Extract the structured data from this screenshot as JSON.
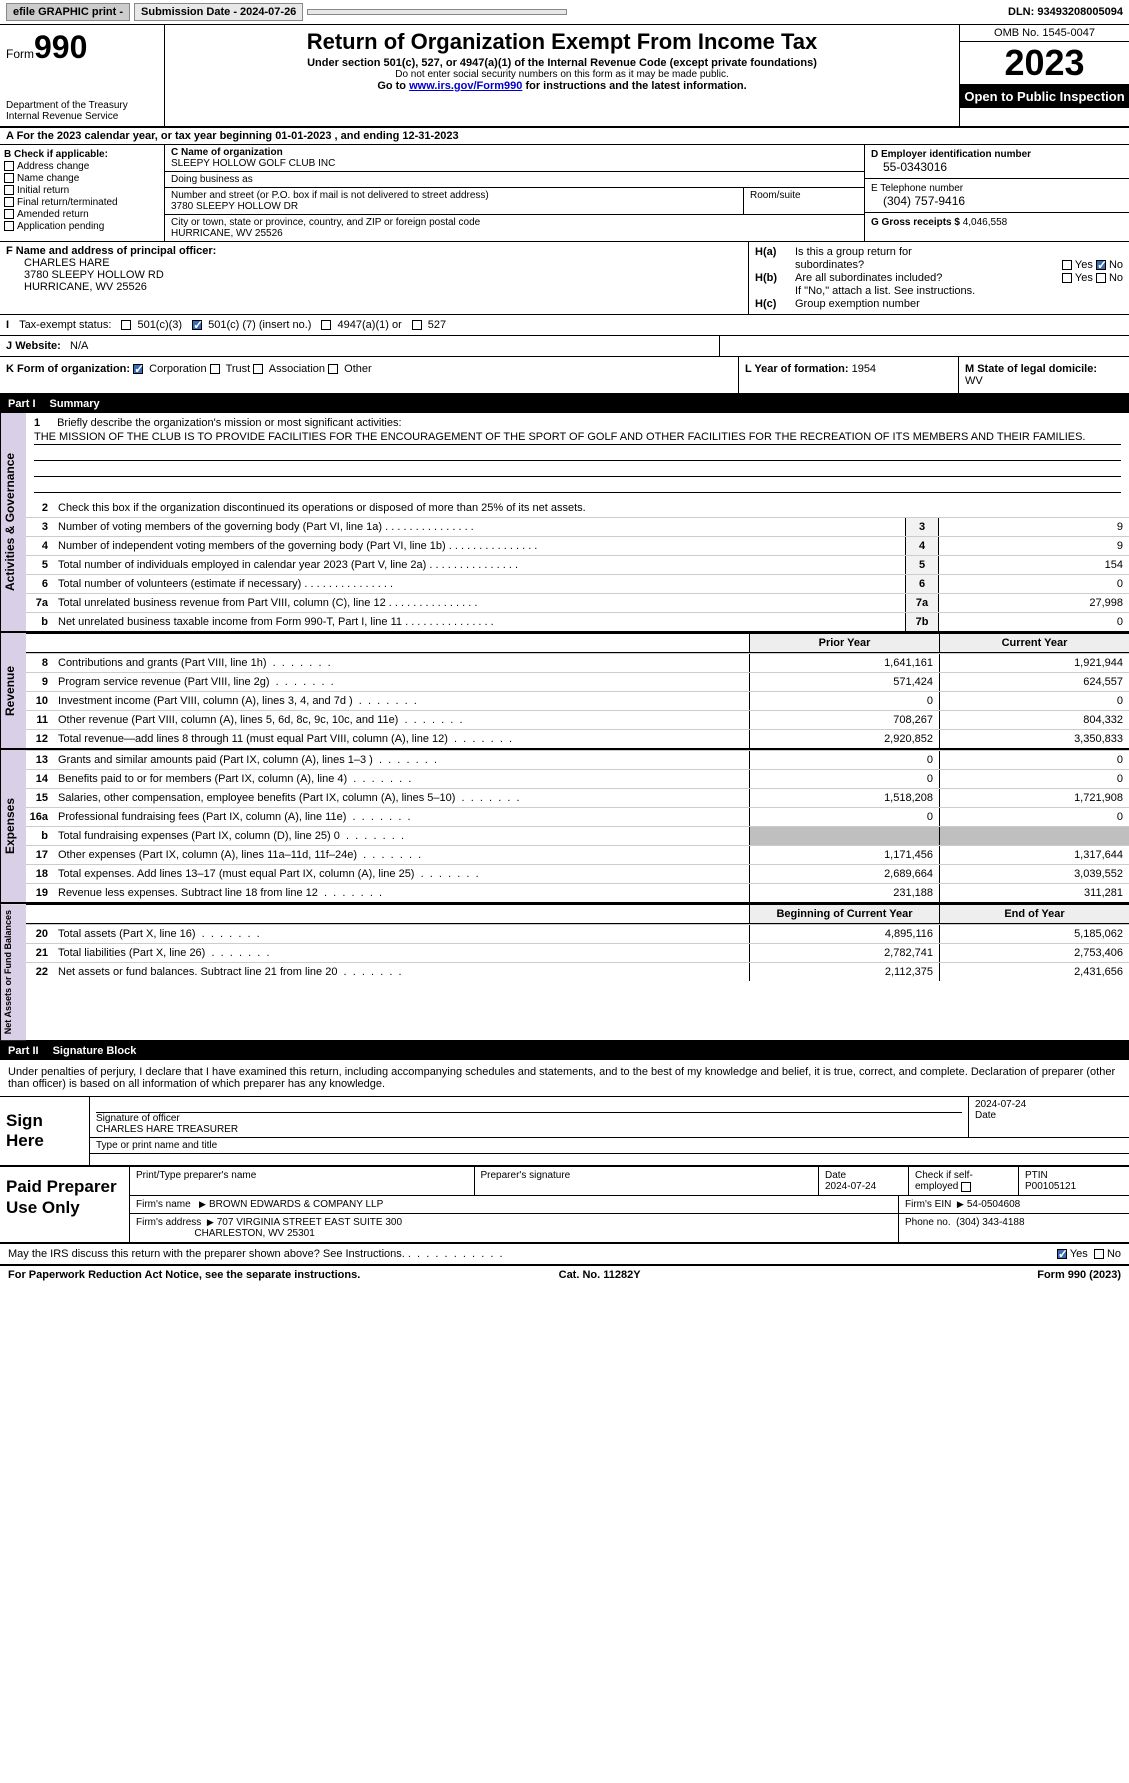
{
  "topbar": {
    "efile": "efile GRAPHIC print -",
    "submission": "Submission Date - 2024-07-26",
    "dln": "DLN: 93493208005094"
  },
  "header": {
    "form_label": "Form",
    "form_num": "990",
    "dept": "Department of the Treasury\nInternal Revenue Service",
    "title": "Return of Organization Exempt From Income Tax",
    "sub1": "Under section 501(c), 527, or 4947(a)(1) of the Internal Revenue Code (except private foundations)",
    "sub2": "Do not enter social security numbers on this form as it may be made public.",
    "sub3_pre": "Go to ",
    "sub3_link": "www.irs.gov/Form990",
    "sub3_post": " for instructions and the latest information.",
    "omb": "OMB No. 1545-0047",
    "year": "2023",
    "inspect": "Open to Public Inspection"
  },
  "rowA": "A For the 2023 calendar year, or tax year beginning 01-01-2023   , and ending 12-31-2023",
  "colB": {
    "title": "B Check if applicable:",
    "items": [
      "Address change",
      "Name change",
      "Initial return",
      "Final return/terminated",
      "Amended return",
      "Application pending"
    ]
  },
  "colC": {
    "name_label": "C Name of organization",
    "name": "SLEEPY HOLLOW GOLF CLUB INC",
    "dba_label": "Doing business as",
    "dba": "",
    "street_label": "Number and street (or P.O. box if mail is not delivered to street address)",
    "street": "3780 SLEEPY HOLLOW DR",
    "room_label": "Room/suite",
    "room": "",
    "city_label": "City or town, state or province, country, and ZIP or foreign postal code",
    "city": "HURRICANE, WV  25526"
  },
  "colD": {
    "ein_label": "D Employer identification number",
    "ein": "55-0343016",
    "tel_label": "E Telephone number",
    "tel": "(304) 757-9416",
    "gross_label": "G Gross receipts $",
    "gross": "4,046,558"
  },
  "colF": {
    "label": "F Name and address of principal officer:",
    "name": "CHARLES HARE",
    "street": "3780 SLEEPY HOLLOW RD",
    "city": "HURRICANE, WV  25526"
  },
  "colH": {
    "a_label": "H(a)",
    "a_txt1": "Is this a group return for",
    "a_txt2": "subordinates?",
    "b_label": "H(b)",
    "b_txt1": "Are all subordinates included?",
    "b_note": "If \"No,\" attach a list. See instructions.",
    "c_label": "H(c)",
    "c_txt": "Group exemption number",
    "yes": "Yes",
    "no": "No"
  },
  "rowI": {
    "label": "I",
    "txt": "Tax-exempt status:",
    "opt1": "501(c)(3)",
    "opt2_pre": "501(c) (",
    "opt2_val": "7",
    "opt2_post": ") (insert no.)",
    "opt3": "4947(a)(1) or",
    "opt4": "527"
  },
  "rowJ": {
    "label": "J",
    "txt": "Website:",
    "val": "N/A"
  },
  "rowK": {
    "label": "K Form of organization:",
    "opts": [
      "Corporation",
      "Trust",
      "Association",
      "Other"
    ],
    "L_label": "L Year of formation:",
    "L_val": "1954",
    "M_label": "M State of legal domicile:",
    "M_val": "WV"
  },
  "part1": {
    "num": "Part I",
    "title": "Summary"
  },
  "sidelabels": {
    "ag": "Activities & Governance",
    "rev": "Revenue",
    "exp": "Expenses",
    "na": "Net Assets or Fund Balances"
  },
  "mission": {
    "label": "1",
    "intro": "Briefly describe the organization's mission or most significant activities:",
    "text": "THE MISSION OF THE CLUB IS TO PROVIDE FACILITIES FOR THE ENCOURAGEMENT OF THE SPORT OF GOLF AND OTHER FACILITIES FOR THE RECREATION OF ITS MEMBERS AND THEIR FAMILIES."
  },
  "ag_lines": [
    {
      "n": "2",
      "t": "Check this box    if the organization discontinued its operations or disposed of more than 25% of its net assets."
    },
    {
      "n": "3",
      "t": "Number of voting members of the governing body (Part VI, line 1a)",
      "box": "3",
      "v": "9"
    },
    {
      "n": "4",
      "t": "Number of independent voting members of the governing body (Part VI, line 1b)",
      "box": "4",
      "v": "9"
    },
    {
      "n": "5",
      "t": "Total number of individuals employed in calendar year 2023 (Part V, line 2a)",
      "box": "5",
      "v": "154"
    },
    {
      "n": "6",
      "t": "Total number of volunteers (estimate if necessary)",
      "box": "6",
      "v": "0"
    },
    {
      "n": "7a",
      "t": "Total unrelated business revenue from Part VIII, column (C), line 12",
      "box": "7a",
      "v": "27,998"
    },
    {
      "n": "b",
      "t": "Net unrelated business taxable income from Form 990-T, Part I, line 11",
      "box": "7b",
      "v": "0"
    }
  ],
  "col_hdr": {
    "prior": "Prior Year",
    "current": "Current Year"
  },
  "rev_lines": [
    {
      "n": "8",
      "t": "Contributions and grants (Part VIII, line 1h)",
      "p": "1,641,161",
      "c": "1,921,944"
    },
    {
      "n": "9",
      "t": "Program service revenue (Part VIII, line 2g)",
      "p": "571,424",
      "c": "624,557"
    },
    {
      "n": "10",
      "t": "Investment income (Part VIII, column (A), lines 3, 4, and 7d )",
      "p": "0",
      "c": "0"
    },
    {
      "n": "11",
      "t": "Other revenue (Part VIII, column (A), lines 5, 6d, 8c, 9c, 10c, and 11e)",
      "p": "708,267",
      "c": "804,332"
    },
    {
      "n": "12",
      "t": "Total revenue—add lines 8 through 11 (must equal Part VIII, column (A), line 12)",
      "p": "2,920,852",
      "c": "3,350,833"
    }
  ],
  "exp_lines": [
    {
      "n": "13",
      "t": "Grants and similar amounts paid (Part IX, column (A), lines 1–3 )",
      "p": "0",
      "c": "0"
    },
    {
      "n": "14",
      "t": "Benefits paid to or for members (Part IX, column (A), line 4)",
      "p": "0",
      "c": "0"
    },
    {
      "n": "15",
      "t": "Salaries, other compensation, employee benefits (Part IX, column (A), lines 5–10)",
      "p": "1,518,208",
      "c": "1,721,908"
    },
    {
      "n": "16a",
      "t": "Professional fundraising fees (Part IX, column (A), line 11e)",
      "p": "0",
      "c": "0"
    },
    {
      "n": "b",
      "t": "Total fundraising expenses (Part IX, column (D), line 25) 0",
      "shade": true
    },
    {
      "n": "17",
      "t": "Other expenses (Part IX, column (A), lines 11a–11d, 11f–24e)",
      "p": "1,171,456",
      "c": "1,317,644"
    },
    {
      "n": "18",
      "t": "Total expenses. Add lines 13–17 (must equal Part IX, column (A), line 25)",
      "p": "2,689,664",
      "c": "3,039,552"
    },
    {
      "n": "19",
      "t": "Revenue less expenses. Subtract line 18 from line 12",
      "p": "231,188",
      "c": "311,281"
    }
  ],
  "na_hdr": {
    "begin": "Beginning of Current Year",
    "end": "End of Year"
  },
  "na_lines": [
    {
      "n": "20",
      "t": "Total assets (Part X, line 16)",
      "p": "4,895,116",
      "c": "5,185,062"
    },
    {
      "n": "21",
      "t": "Total liabilities (Part X, line 26)",
      "p": "2,782,741",
      "c": "2,753,406"
    },
    {
      "n": "22",
      "t": "Net assets or fund balances. Subtract line 21 from line 20",
      "p": "2,112,375",
      "c": "2,431,656"
    }
  ],
  "part2": {
    "num": "Part II",
    "title": "Signature Block"
  },
  "sig_intro": "Under penalties of perjury, I declare that I have examined this return, including accompanying schedules and statements, and to the best of my knowledge and belief, it is true, correct, and complete. Declaration of preparer (other than officer) is based on all information of which preparer has any knowledge.",
  "sign": {
    "label": "Sign Here",
    "sig_label": "Signature of officer",
    "name": "CHARLES HARE  TREASURER",
    "type_label": "Type or print name and title",
    "date_label": "Date",
    "date": "2024-07-24"
  },
  "paid": {
    "label": "Paid Preparer Use Only",
    "name_label": "Print/Type preparer's name",
    "sig_label": "Preparer's signature",
    "date_label": "Date",
    "date": "2024-07-24",
    "check_label": "Check    if self-employed",
    "ptin_label": "PTIN",
    "ptin": "P00105121",
    "firm_name_label": "Firm's name",
    "firm_name": "BROWN EDWARDS & COMPANY LLP",
    "firm_ein_label": "Firm's EIN",
    "firm_ein": "54-0504608",
    "firm_addr_label": "Firm's address",
    "firm_addr1": "707 VIRGINIA STREET EAST SUITE 300",
    "firm_addr2": "CHARLESTON, WV  25301",
    "phone_label": "Phone no.",
    "phone": "(304) 343-4188"
  },
  "discuss": {
    "txt": "May the IRS discuss this return with the preparer shown above? See Instructions.",
    "yes": "Yes",
    "no": "No"
  },
  "footer": {
    "left": "For Paperwork Reduction Act Notice, see the separate instructions.",
    "mid": "Cat. No. 11282Y",
    "right": "Form 990 (2023)"
  },
  "colors": {
    "chip_bg": "#cccccc",
    "side_bg": "#d9d0e8",
    "check_blue": "#3a6db5",
    "link": "#0000cc",
    "shade": "#bfbfbf"
  }
}
